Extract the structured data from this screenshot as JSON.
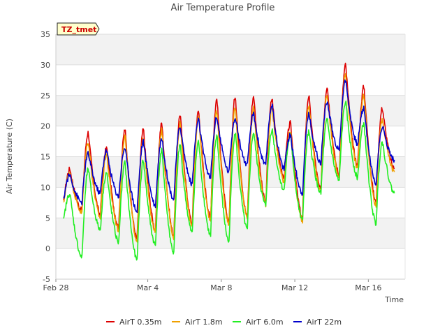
{
  "chart_data": {
    "type": "line",
    "title": "Air Temperature Profile",
    "xlabel": "Time",
    "ylabel": "Air Temperature (C)",
    "tag": "TZ_tmet",
    "ylim": [
      -5,
      35
    ],
    "yticks": [
      -5,
      0,
      5,
      10,
      15,
      20,
      25,
      30,
      35
    ],
    "xlim": [
      "2024-02-28",
      "2024-03-18"
    ],
    "xticks": [
      {
        "date": "2024-02-28",
        "label": "Feb 28"
      },
      {
        "date": "2024-03-04",
        "label": "Mar 4"
      },
      {
        "date": "2024-03-08",
        "label": "Mar 8"
      },
      {
        "date": "2024-03-12",
        "label": "Mar 12"
      },
      {
        "date": "2024-03-16",
        "label": "Mar 16"
      }
    ],
    "grid": "horizontal",
    "legend_position": "bottom",
    "start_date": "2024-02-28",
    "series": [
      {
        "name": "AirT 0.35m",
        "color": "#dd0000",
        "daily": [
          [
            7.5,
            13.0
          ],
          [
            6.2,
            19.0
          ],
          [
            5.5,
            16.5
          ],
          [
            3.5,
            19.5
          ],
          [
            1.5,
            19.5
          ],
          [
            3.0,
            20.5
          ],
          [
            2.0,
            22.0
          ],
          [
            4.0,
            22.5
          ],
          [
            5.0,
            24.5
          ],
          [
            4.0,
            25.0
          ],
          [
            5.0,
            25.0
          ],
          [
            7.5,
            24.5
          ],
          [
            11.5,
            20.5
          ],
          [
            5.0,
            25.0
          ],
          [
            9.5,
            26.5
          ],
          [
            12.0,
            30.0
          ],
          [
            13.5,
            26.5
          ],
          [
            7.5,
            23.0
          ]
        ],
        "end": 13.0
      },
      {
        "name": "AirT 1.8m",
        "color": "#f0a000",
        "daily": [
          [
            7.2,
            12.5
          ],
          [
            5.8,
            17.5
          ],
          [
            5.0,
            15.5
          ],
          [
            3.0,
            18.5
          ],
          [
            1.2,
            18.0
          ],
          [
            2.5,
            19.5
          ],
          [
            1.8,
            20.5
          ],
          [
            3.5,
            21.5
          ],
          [
            4.5,
            22.5
          ],
          [
            3.8,
            23.0
          ],
          [
            4.8,
            23.0
          ],
          [
            7.2,
            23.0
          ],
          [
            11.0,
            19.0
          ],
          [
            4.5,
            23.5
          ],
          [
            9.0,
            25.0
          ],
          [
            11.5,
            28.5
          ],
          [
            13.0,
            25.0
          ],
          [
            7.0,
            21.0
          ]
        ],
        "end": 12.5
      },
      {
        "name": "AirT 6.0m",
        "color": "#22ee22",
        "daily": [
          [
            4.5,
            9.0
          ],
          [
            -1.5,
            13.0
          ],
          [
            3.0,
            12.5
          ],
          [
            1.0,
            14.0
          ],
          [
            -2.0,
            14.5
          ],
          [
            0.5,
            16.0
          ],
          [
            -0.8,
            17.0
          ],
          [
            2.5,
            17.5
          ],
          [
            2.0,
            18.5
          ],
          [
            1.0,
            19.0
          ],
          [
            3.0,
            19.0
          ],
          [
            7.0,
            19.5
          ],
          [
            9.5,
            18.5
          ],
          [
            4.5,
            19.0
          ],
          [
            9.0,
            21.0
          ],
          [
            11.0,
            24.0
          ],
          [
            11.5,
            20.5
          ],
          [
            4.0,
            17.5
          ]
        ],
        "end": 9.0
      },
      {
        "name": "AirT 22m",
        "color": "#0000cc",
        "daily": [
          [
            8.0,
            12.0
          ],
          [
            7.5,
            15.5
          ],
          [
            9.0,
            16.0
          ],
          [
            8.5,
            16.5
          ],
          [
            6.0,
            17.5
          ],
          [
            7.0,
            18.0
          ],
          [
            8.0,
            20.0
          ],
          [
            10.5,
            21.0
          ],
          [
            11.5,
            21.5
          ],
          [
            12.5,
            21.5
          ],
          [
            13.5,
            22.0
          ],
          [
            13.5,
            23.5
          ],
          [
            13.0,
            18.5
          ],
          [
            9.0,
            22.0
          ],
          [
            14.0,
            24.0
          ],
          [
            16.0,
            27.5
          ],
          [
            17.0,
            23.0
          ],
          [
            10.5,
            20.0
          ]
        ],
        "end": 14.5
      }
    ]
  }
}
